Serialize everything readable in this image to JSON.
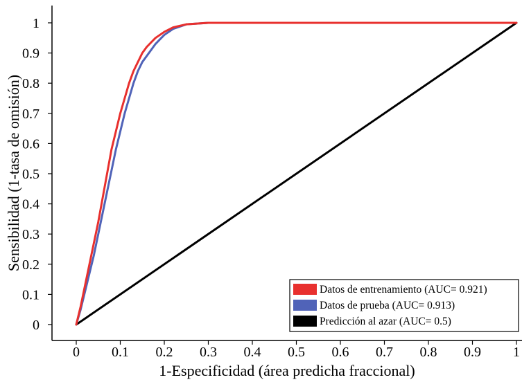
{
  "chart_data": {
    "type": "line",
    "xlabel": "1-Especificidad (área predicha fraccional)",
    "ylabel": "Sensibilidad (1-tasa de omisión)",
    "xlim": [
      0,
      1
    ],
    "ylim": [
      0,
      1
    ],
    "x_ticks": [
      "0",
      "0.1",
      "0.2",
      "0.3",
      "0.4",
      "0.5",
      "0.6",
      "0.7",
      "0.8",
      "0.9",
      "1"
    ],
    "y_ticks": [
      "0",
      "0.1",
      "0.2",
      "0.3",
      "0.4",
      "0.5",
      "0.6",
      "0.7",
      "0.8",
      "0.9",
      "1"
    ],
    "grid": false,
    "legend_position": "bottom-right",
    "series": [
      {
        "name": "Datos de entrenamiento (AUC= 0.921)",
        "color": "#e8302e",
        "x": [
          0,
          0.01,
          0.02,
          0.03,
          0.04,
          0.05,
          0.06,
          0.07,
          0.08,
          0.09,
          0.1,
          0.11,
          0.12,
          0.13,
          0.14,
          0.15,
          0.16,
          0.17,
          0.18,
          0.19,
          0.2,
          0.22,
          0.25,
          0.3,
          0.35,
          1
        ],
        "y": [
          0,
          0.06,
          0.13,
          0.2,
          0.27,
          0.34,
          0.42,
          0.5,
          0.58,
          0.64,
          0.7,
          0.75,
          0.8,
          0.84,
          0.87,
          0.9,
          0.92,
          0.935,
          0.95,
          0.96,
          0.97,
          0.985,
          0.995,
          1,
          1,
          1
        ]
      },
      {
        "name": "Datos de prueba (AUC= 0.913)",
        "color": "#5063b8",
        "x": [
          0,
          0.01,
          0.02,
          0.03,
          0.04,
          0.05,
          0.06,
          0.07,
          0.08,
          0.09,
          0.1,
          0.11,
          0.12,
          0.13,
          0.14,
          0.15,
          0.16,
          0.17,
          0.18,
          0.19,
          0.2,
          0.22,
          0.25,
          0.3,
          0.35,
          1
        ],
        "y": [
          0,
          0.05,
          0.11,
          0.17,
          0.23,
          0.3,
          0.37,
          0.44,
          0.51,
          0.58,
          0.64,
          0.7,
          0.75,
          0.8,
          0.84,
          0.87,
          0.89,
          0.91,
          0.93,
          0.945,
          0.96,
          0.98,
          0.995,
          1,
          1,
          1
        ]
      },
      {
        "name": "Predicción al azar (AUC= 0.5)",
        "color": "#000000",
        "x": [
          0,
          1
        ],
        "y": [
          0,
          1
        ]
      }
    ]
  }
}
